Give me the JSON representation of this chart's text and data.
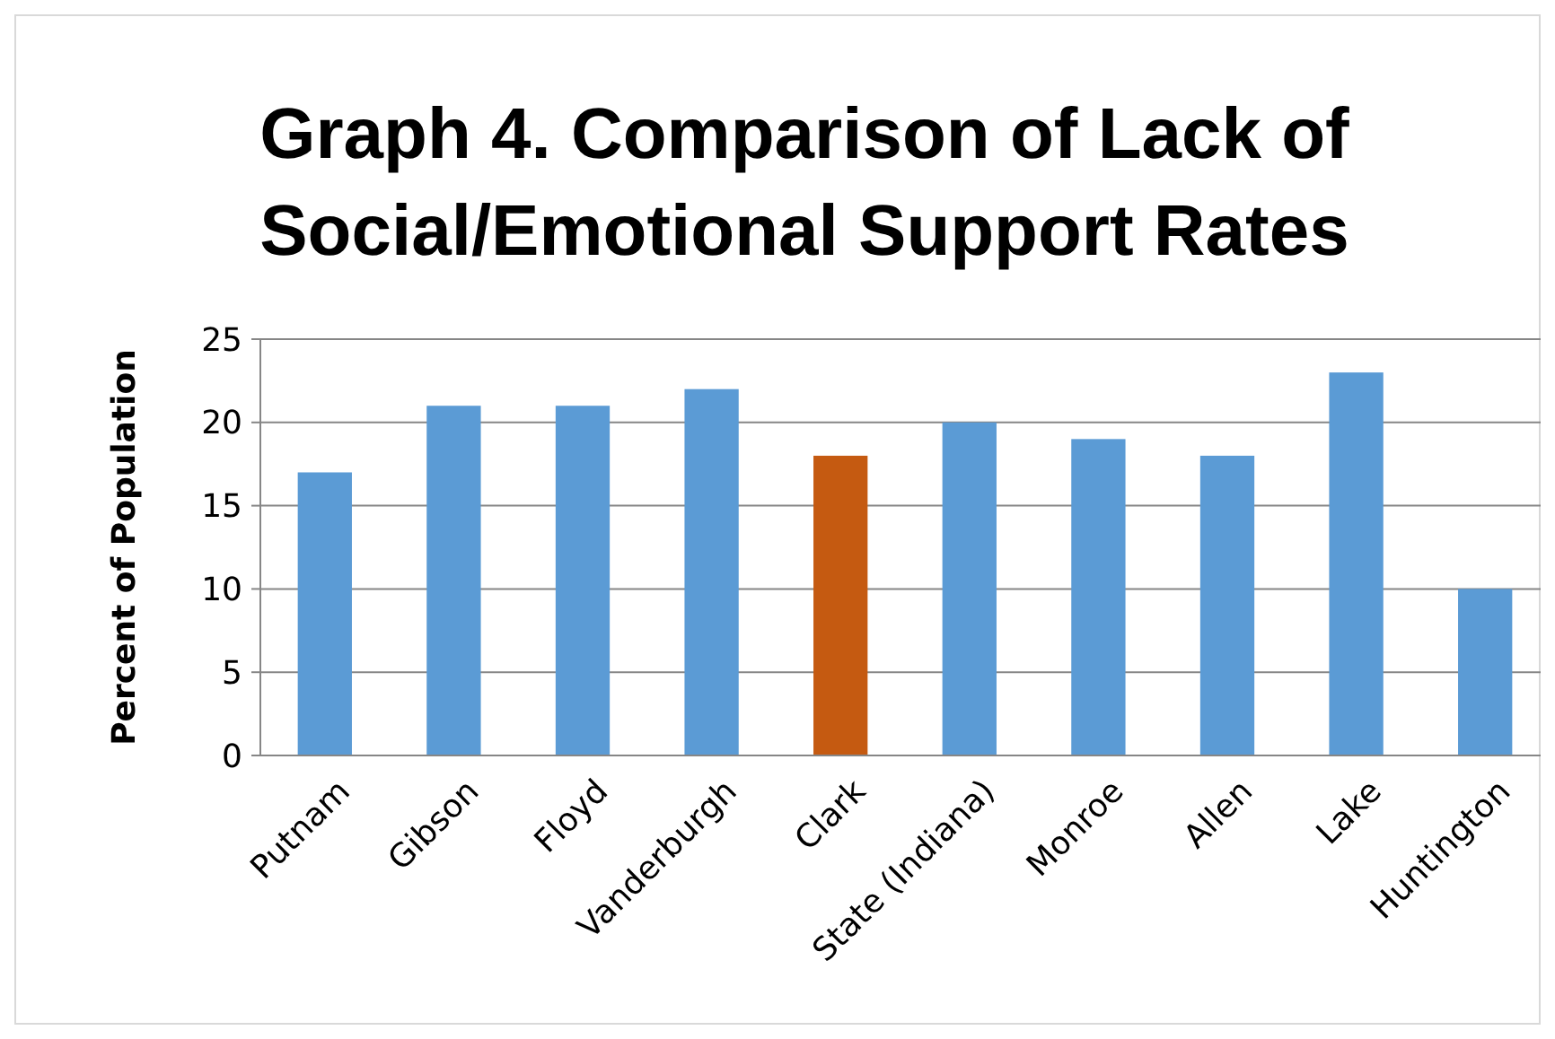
{
  "chart_data": {
    "type": "bar",
    "title": "Graph 4. Comparison of Lack of Social/Emotional Support Rates",
    "ylabel": "Percent of Population",
    "categories": [
      "Putnam",
      "Gibson",
      "Floyd",
      "Vanderburgh",
      "Clark",
      "State (Indiana)",
      "Monroe",
      "Allen",
      "Lake",
      "Huntington"
    ],
    "values": [
      17,
      21,
      21,
      22,
      18,
      20,
      19,
      18,
      23,
      10
    ],
    "colors": [
      "#5b9bd5",
      "#5b9bd5",
      "#5b9bd5",
      "#5b9bd5",
      "#c55a11",
      "#5b9bd5",
      "#5b9bd5",
      "#5b9bd5",
      "#5b9bd5",
      "#5b9bd5"
    ],
    "ylim": [
      0,
      25
    ],
    "yticks": [
      0,
      5,
      10,
      15,
      20,
      25
    ],
    "grid": "y"
  }
}
